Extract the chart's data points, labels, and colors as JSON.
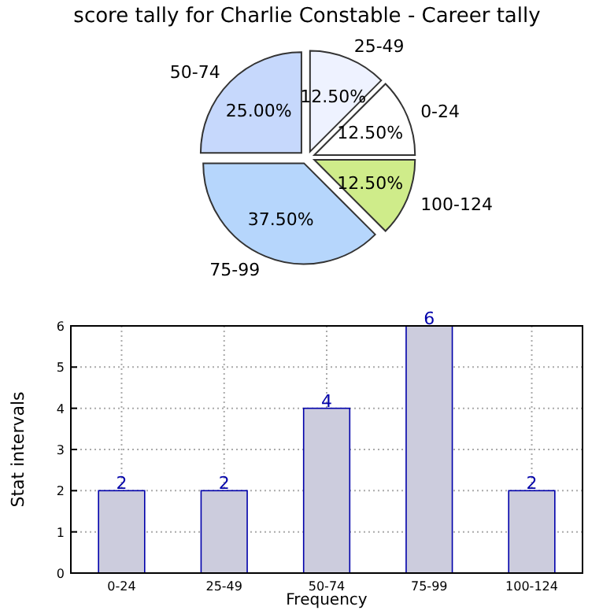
{
  "chart_data": [
    {
      "type": "pie",
      "title": "score tally for Charlie Constable - Career tally",
      "categories": [
        "25-49",
        "0-24",
        "100-124",
        "75-99",
        "50-74"
      ],
      "values": [
        12.5,
        12.5,
        12.5,
        37.5,
        25
      ],
      "colors": [
        "#eef2ff",
        "#ffffff",
        "#cfec8a",
        "#b6d6fc",
        "#c6d8fc"
      ],
      "value_labels": [
        "12.50%",
        "12.50%",
        "12.50%",
        "37.50%",
        "25.00%"
      ]
    },
    {
      "type": "bar",
      "categories": [
        "0-24",
        "25-49",
        "50-74",
        "75-99",
        "100-124"
      ],
      "values": [
        2,
        2,
        4,
        6,
        2
      ],
      "color": "#ccccdd",
      "ylim": [
        0,
        6
      ],
      "yticks": [
        0,
        1,
        2,
        3,
        4,
        5,
        6
      ],
      "grid": true,
      "xlabel": "Frequency",
      "ylabel": "Stat intervals",
      "data_labels": true
    }
  ]
}
